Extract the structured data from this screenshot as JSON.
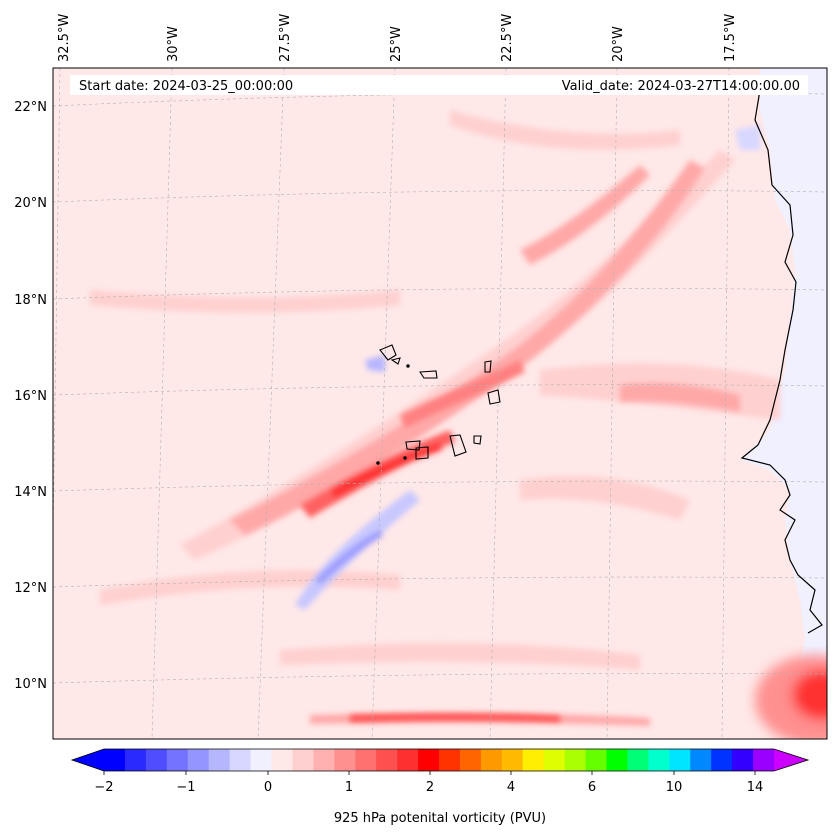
{
  "header": {
    "start_date": "Start date: 2024-03-25_00:00:00",
    "valid_date": "Valid_date: 2024-03-27T14:00:00.00"
  },
  "map": {
    "lon_labels": [
      "32.5°W",
      "30°W",
      "27.5°W",
      "25°W",
      "22.5°W",
      "20°W",
      "17.5°W"
    ],
    "lat_labels": [
      "22°N",
      "20°N",
      "18°N",
      "16°N",
      "14°N",
      "12°N",
      "10°N"
    ],
    "background_color": "#ffe8e8"
  },
  "colorbar": {
    "tick_labels": [
      "−2",
      "−1",
      "0",
      "1",
      "2",
      "4",
      "6",
      "10",
      "14"
    ],
    "label": "925 hPa potenital vorticity (PVU)",
    "colors": [
      "#0000ff",
      "#2a2aff",
      "#4e4eff",
      "#7373ff",
      "#9595ff",
      "#b6b6ff",
      "#d7d7ff",
      "#f0f0ff",
      "#ffe8e8",
      "#ffd0d0",
      "#ffb0b0",
      "#ff9090",
      "#ff7070",
      "#ff5050",
      "#ff3030",
      "#ff0000",
      "#ff3300",
      "#ff6600",
      "#ff9900",
      "#ffbb00",
      "#ffee00",
      "#ddff00",
      "#aaff00",
      "#66ff00",
      "#00ff00",
      "#00ff77",
      "#00ffcc",
      "#00e5ff",
      "#0088ff",
      "#0033ff",
      "#3300ff",
      "#9900ff"
    ],
    "under_color": "#0000ff",
    "over_color": "#cc00ff"
  }
}
